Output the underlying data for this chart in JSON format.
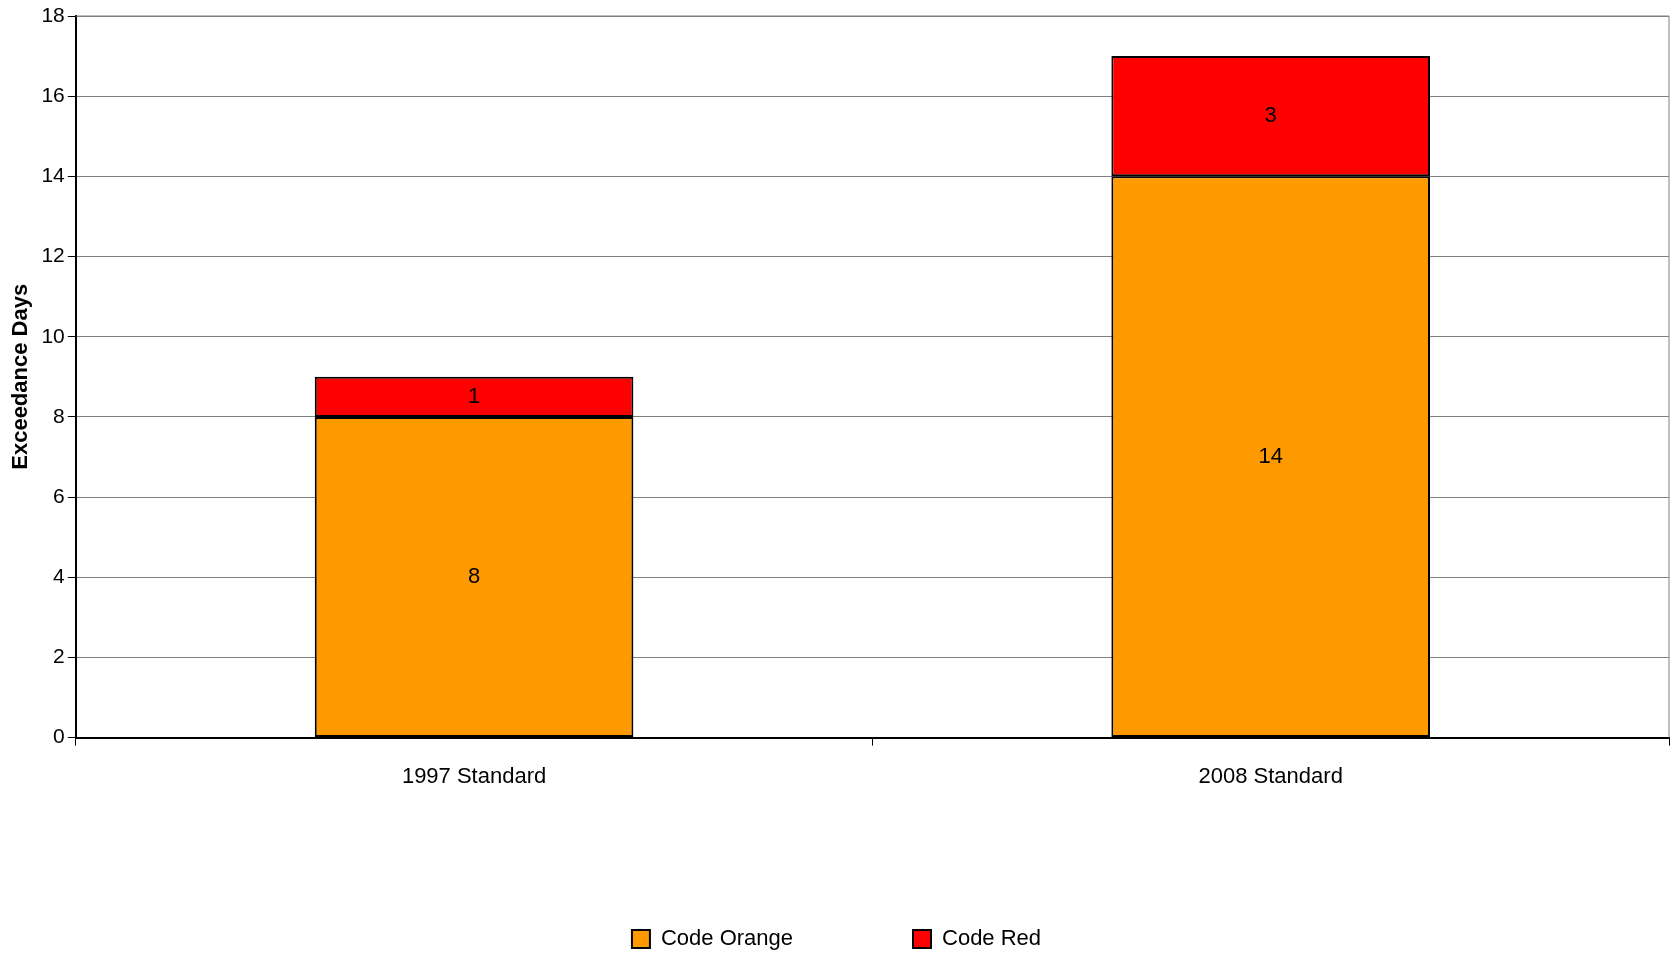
{
  "chart_data": {
    "type": "bar",
    "ylabel": "Exceedance Days",
    "categories": [
      "1997 Standard",
      "2008 Standard"
    ],
    "series": [
      {
        "name": "Code Orange",
        "color": "#ff9900",
        "values": [
          8,
          14
        ]
      },
      {
        "name": "Code Red",
        "color": "#ff0000",
        "values": [
          1,
          3
        ]
      }
    ],
    "stacked": true,
    "ylim": [
      0,
      18
    ],
    "yticks": [
      0,
      2,
      4,
      6,
      8,
      10,
      12,
      14,
      16,
      18
    ],
    "grid": "y",
    "legend": "bottom",
    "data_labels": true
  }
}
